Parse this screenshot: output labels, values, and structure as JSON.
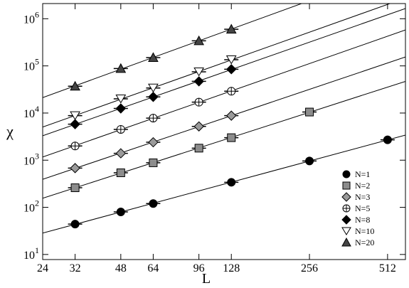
{
  "chart_data": {
    "type": "scatter",
    "x_label": "L",
    "y_label": "χ",
    "xlog": true,
    "ylog": true,
    "xlim": [
      24,
      600
    ],
    "ylim": [
      7.8,
      2100000
    ],
    "xticks": [
      24,
      32,
      48,
      64,
      96,
      128,
      256,
      512
    ],
    "yticks": [
      {
        "value": 10,
        "label": "10",
        "sup": "1"
      },
      {
        "value": 100,
        "label": "10",
        "sup": "2"
      },
      {
        "value": 1000,
        "label": "10",
        "sup": "3"
      },
      {
        "value": 10000,
        "label": "10",
        "sup": "4"
      },
      {
        "value": 100000,
        "label": "10",
        "sup": "5"
      },
      {
        "value": 1000000,
        "label": "10",
        "sup": "6"
      }
    ],
    "legend": "lower-right",
    "fit_lines": true,
    "series": [
      {
        "name": "N=1",
        "marker": "circle",
        "color": "#000000",
        "x": [
          32,
          48,
          64,
          128,
          256,
          512
        ],
        "values": [
          44,
          80,
          120,
          340,
          960,
          2700
        ]
      },
      {
        "name": "N=2",
        "marker": "square",
        "color": "#8c8c8c",
        "x": [
          32,
          48,
          64,
          96,
          128,
          256
        ],
        "values": [
          260,
          540,
          880,
          1800,
          3000,
          10500
        ]
      },
      {
        "name": "N=3",
        "marker": "diamond",
        "color": "#9a9a9a",
        "x": [
          32,
          48,
          64,
          96,
          128
        ],
        "values": [
          680,
          1400,
          2400,
          5200,
          8800
        ]
      },
      {
        "name": "N=5",
        "marker": "crosscircle",
        "color": "#ffffff",
        "x": [
          32,
          48,
          64,
          96,
          128
        ],
        "values": [
          2000,
          4500,
          7800,
          17000,
          29000
        ]
      },
      {
        "name": "N=8",
        "marker": "diamond",
        "color": "#000000",
        "x": [
          32,
          48,
          64,
          96,
          128
        ],
        "values": [
          5800,
          12500,
          22000,
          47000,
          85000
        ]
      },
      {
        "name": "N=10",
        "marker": "triangle-down",
        "color": "#ffffff",
        "x": [
          32,
          48,
          64,
          96,
          128
        ],
        "values": [
          8800,
          20000,
          34000,
          75000,
          135000
        ]
      },
      {
        "name": "N=20",
        "marker": "triangle-up",
        "color": "#444444",
        "x": [
          32,
          48,
          64,
          96,
          128
        ],
        "values": [
          37000,
          88000,
          150000,
          340000,
          600000
        ]
      }
    ]
  }
}
